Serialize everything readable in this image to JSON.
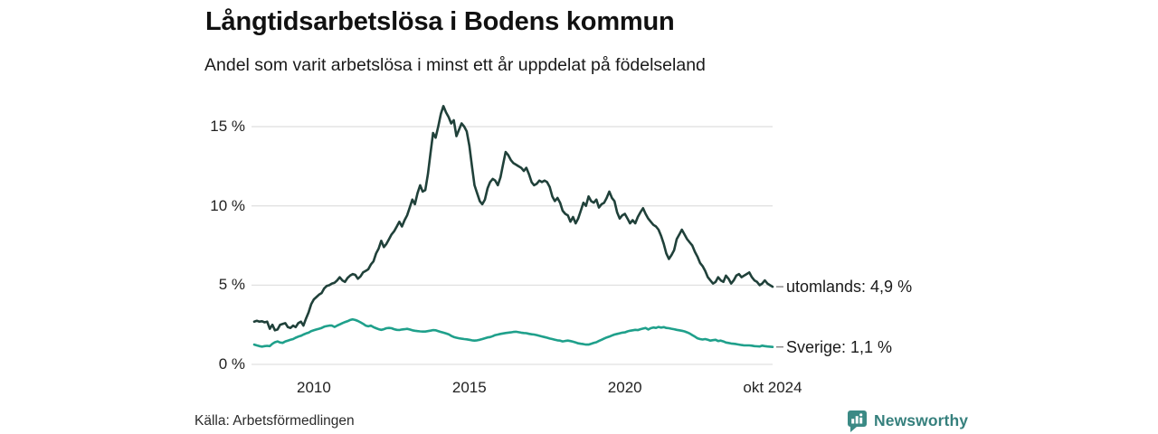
{
  "header": {
    "title": "Långtidsarbetslösa i Bodens kommun",
    "subtitle": "Andel som varit arbetslösa i minst ett år uppdelat på födelseland"
  },
  "footer": {
    "source": "Källa: Arbetsförmedlingen",
    "brand_name": "Newsworthy",
    "brand_icon": "bar-chart-bubble-icon",
    "brand_color": "#36807d"
  },
  "chart_data": {
    "type": "line",
    "title": "Långtidsarbetslösa i Bodens kommun",
    "subtitle": "Andel som varit arbetslösa i minst ett år uppdelat på födelseland",
    "grid": true,
    "legend_position": "end-of-line-labels",
    "x_axis": {
      "range_years": [
        2008.083,
        2024.75
      ],
      "ticks": [
        {
          "label": "2010",
          "year": 2010
        },
        {
          "label": "2015",
          "year": 2015
        },
        {
          "label": "2020",
          "year": 2020
        },
        {
          "label": "okt 2024",
          "year": 2024.75
        }
      ]
    },
    "y_axis": {
      "range": [
        0,
        16.5
      ],
      "unit": "%",
      "ticks": [
        {
          "label": "0 %",
          "value": 0
        },
        {
          "label": "5 %",
          "value": 5
        },
        {
          "label": "10 %",
          "value": 10
        },
        {
          "label": "15 %",
          "value": 15
        }
      ]
    },
    "series": [
      {
        "name": "utomlands",
        "label": "utomlands: 4,9 %",
        "last_value": 4.9,
        "color": "#20413a",
        "start_year": 2008.083,
        "interval_months": 1,
        "values": [
          2.7,
          2.75,
          2.7,
          2.72,
          2.65,
          2.7,
          2.25,
          2.5,
          2.15,
          2.2,
          2.5,
          2.55,
          2.6,
          2.35,
          2.3,
          2.45,
          2.35,
          2.6,
          2.7,
          2.45,
          2.9,
          3.3,
          3.8,
          4.1,
          4.25,
          4.4,
          4.5,
          4.8,
          4.95,
          5.0,
          5.1,
          5.15,
          5.3,
          5.5,
          5.3,
          5.2,
          5.45,
          5.6,
          5.7,
          5.65,
          5.4,
          5.55,
          5.8,
          5.9,
          6.0,
          6.3,
          6.5,
          7.0,
          7.3,
          7.8,
          7.4,
          7.6,
          7.9,
          8.2,
          8.4,
          8.7,
          9.0,
          8.7,
          9.1,
          9.4,
          9.9,
          10.4,
          10.1,
          10.8,
          11.3,
          10.9,
          11.0,
          12.0,
          13.3,
          14.6,
          14.3,
          15.0,
          15.8,
          16.3,
          15.9,
          15.6,
          15.2,
          15.4,
          14.4,
          14.8,
          15.2,
          15.0,
          14.7,
          13.8,
          12.5,
          11.3,
          10.8,
          10.3,
          10.1,
          10.4,
          11.1,
          11.5,
          11.7,
          11.6,
          11.3,
          11.8,
          12.6,
          13.4,
          13.2,
          12.9,
          12.7,
          12.6,
          12.5,
          12.4,
          12.2,
          12.4,
          12.0,
          11.5,
          11.3,
          11.4,
          11.6,
          11.5,
          11.6,
          11.5,
          11.2,
          10.6,
          10.3,
          10.5,
          10.2,
          9.7,
          9.5,
          9.4,
          9.0,
          9.3,
          8.9,
          9.2,
          9.7,
          10.2,
          10.0,
          10.6,
          10.3,
          10.2,
          10.4,
          9.9,
          10.1,
          10.2,
          10.5,
          10.9,
          10.5,
          10.3,
          9.6,
          9.2,
          9.4,
          9.5,
          9.2,
          8.9,
          9.1,
          8.9,
          9.3,
          9.6,
          9.85,
          9.5,
          9.2,
          9.0,
          8.8,
          8.7,
          8.5,
          8.1,
          7.6,
          7.0,
          6.65,
          6.9,
          7.2,
          7.9,
          8.2,
          8.5,
          8.2,
          7.9,
          7.7,
          7.5,
          7.1,
          6.8,
          6.4,
          6.2,
          5.9,
          5.5,
          5.3,
          5.1,
          5.2,
          5.5,
          5.3,
          5.2,
          5.6,
          5.4,
          5.1,
          5.3,
          5.6,
          5.7,
          5.5,
          5.6,
          5.7,
          5.8,
          5.5,
          5.3,
          5.2,
          5.0,
          5.1,
          5.3,
          5.1,
          5.0,
          4.9
        ]
      },
      {
        "name": "Sverige",
        "label": "Sverige: 1,1 %",
        "last_value": 1.1,
        "color": "#1fa08b",
        "start_year": 2008.083,
        "interval_months": 1,
        "values": [
          1.25,
          1.2,
          1.15,
          1.12,
          1.15,
          1.17,
          1.15,
          1.3,
          1.4,
          1.45,
          1.38,
          1.36,
          1.45,
          1.5,
          1.55,
          1.6,
          1.68,
          1.75,
          1.8,
          1.88,
          1.95,
          2.0,
          2.1,
          2.15,
          2.2,
          2.25,
          2.3,
          2.38,
          2.42,
          2.45,
          2.45,
          2.36,
          2.45,
          2.52,
          2.6,
          2.67,
          2.72,
          2.8,
          2.84,
          2.8,
          2.74,
          2.65,
          2.56,
          2.45,
          2.4,
          2.45,
          2.35,
          2.28,
          2.22,
          2.18,
          2.22,
          2.28,
          2.3,
          2.28,
          2.22,
          2.18,
          2.17,
          2.2,
          2.22,
          2.24,
          2.2,
          2.15,
          2.12,
          2.1,
          2.08,
          2.07,
          2.07,
          2.1,
          2.13,
          2.16,
          2.15,
          2.1,
          2.05,
          2.0,
          1.95,
          1.9,
          1.8,
          1.73,
          1.68,
          1.65,
          1.62,
          1.6,
          1.58,
          1.55,
          1.52,
          1.5,
          1.52,
          1.55,
          1.6,
          1.65,
          1.7,
          1.72,
          1.78,
          1.85,
          1.88,
          1.92,
          1.95,
          1.98,
          2.0,
          2.02,
          2.05,
          2.06,
          2.03,
          2.0,
          1.98,
          1.97,
          1.93,
          1.9,
          1.88,
          1.85,
          1.8,
          1.76,
          1.72,
          1.68,
          1.63,
          1.6,
          1.56,
          1.52,
          1.5,
          1.45,
          1.48,
          1.5,
          1.47,
          1.43,
          1.38,
          1.33,
          1.3,
          1.28,
          1.25,
          1.25,
          1.3,
          1.35,
          1.4,
          1.48,
          1.55,
          1.63,
          1.7,
          1.75,
          1.82,
          1.88,
          1.92,
          1.96,
          2.0,
          2.02,
          2.08,
          2.12,
          2.15,
          2.18,
          2.16,
          2.22,
          2.26,
          2.3,
          2.2,
          2.28,
          2.33,
          2.3,
          2.36,
          2.32,
          2.35,
          2.3,
          2.28,
          2.25,
          2.22,
          2.18,
          2.15,
          2.12,
          2.08,
          2.02,
          1.95,
          1.85,
          1.75,
          1.65,
          1.6,
          1.57,
          1.6,
          1.55,
          1.5,
          1.53,
          1.55,
          1.47,
          1.5,
          1.45,
          1.38,
          1.35,
          1.32,
          1.3,
          1.28,
          1.25,
          1.22,
          1.2,
          1.2,
          1.2,
          1.18,
          1.15,
          1.14,
          1.13,
          1.18,
          1.15,
          1.13,
          1.12,
          1.1
        ]
      }
    ],
    "colors": {
      "grid": "#e1e1e1",
      "label_dash": "#8a8a8a",
      "text": "#222222"
    }
  }
}
